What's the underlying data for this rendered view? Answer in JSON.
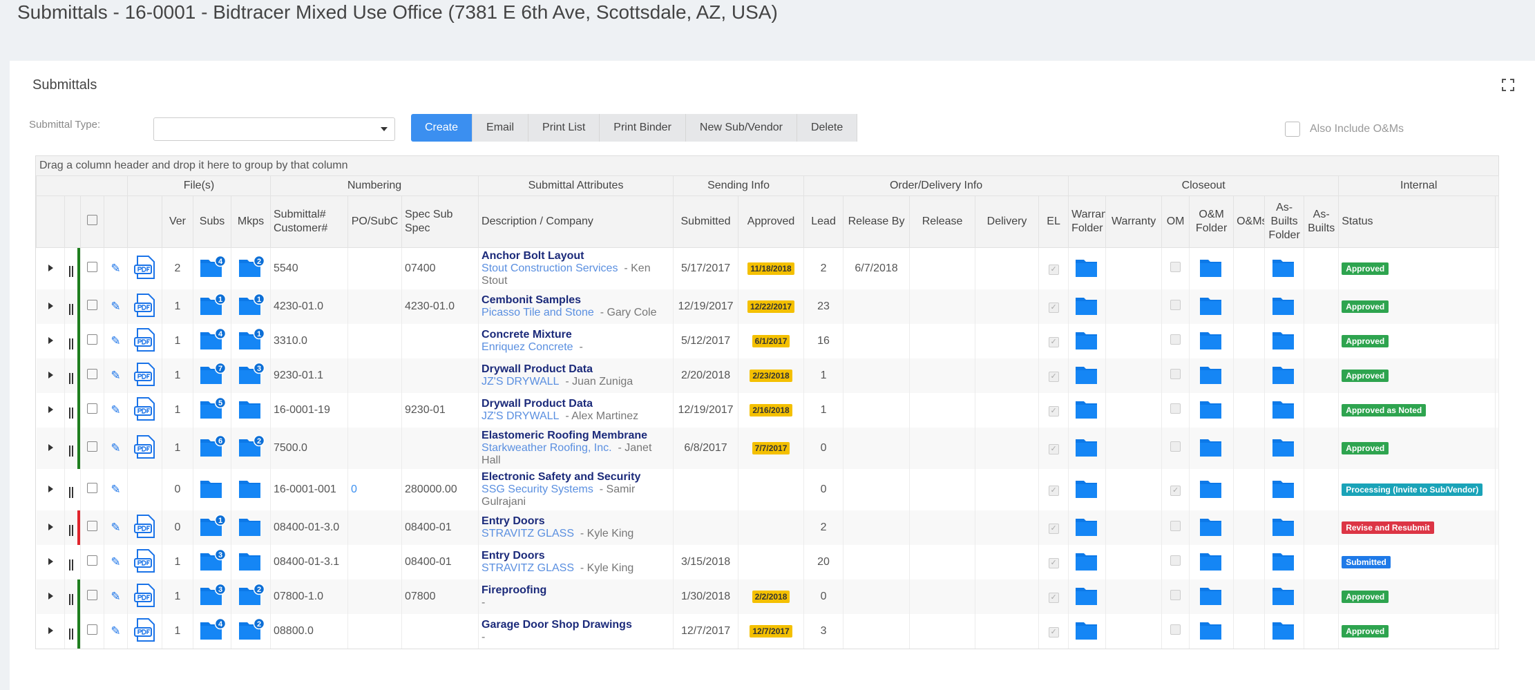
{
  "header": {
    "title": "Submittals - 16-0001 - Bidtracer Mixed Use Office (7381 E 6th Ave, Scottsdale, AZ, USA)"
  },
  "panel": {
    "title": "Submittals"
  },
  "toolbar": {
    "type_label": "Submittal Type:",
    "buttons": [
      "Create",
      "Email",
      "Print List",
      "Print Binder",
      "New Sub/Vendor",
      "Delete"
    ],
    "include_label": "Also Include O&Ms"
  },
  "table": {
    "group_hint": "Drag a column header and drop it here to group by that column",
    "groups": [
      "File(s)",
      "Numbering",
      "Submittal Attributes",
      "Sending Info",
      "Order/Delivery Info",
      "Closeout",
      "Internal"
    ],
    "columns": [
      "Ver",
      "Subs",
      "Mkps",
      "Submittal# Customer#",
      "PO/SubC",
      "Spec Sub Spec",
      "Description / Company",
      "Submitted",
      "Approved",
      "Lead",
      "Release By",
      "Release",
      "Delivery",
      "EL",
      "Warranty Folder",
      "Warranty",
      "OM",
      "O&M Folder",
      "O&Ms",
      "As-Builts Folder",
      "As-Builts",
      "Status"
    ],
    "rows": [
      {
        "bar": "green",
        "pdf": true,
        "ver": 2,
        "subs": 4,
        "mkps": 2,
        "number": "5540",
        "po": null,
        "spec": "07400",
        "description": "Anchor Bolt Layout",
        "company": "Stout Construction Services",
        "contact": "- Ken Stout",
        "submitted": "5/17/2017",
        "approved": "11/18/2018",
        "lead": 2,
        "release_by": "6/7/2018",
        "el": true,
        "om": false,
        "status": "Approved"
      },
      {
        "bar": "green",
        "pdf": true,
        "ver": 1,
        "subs": 1,
        "mkps": 1,
        "number": "4230-01.0",
        "po": null,
        "spec": "4230-01.0",
        "description": "Cembonit Samples",
        "company": "Picasso Tile and Stone",
        "contact": "- Gary Cole",
        "submitted": "12/19/2017",
        "approved": "12/22/2017",
        "lead": 23,
        "release_by": null,
        "el": true,
        "om": false,
        "status": "Approved"
      },
      {
        "bar": "green",
        "pdf": true,
        "ver": 1,
        "subs": 4,
        "mkps": 1,
        "number": "3310.0",
        "po": null,
        "spec": null,
        "description": "Concrete Mixture",
        "company": "Enriquez Concrete",
        "contact": "-",
        "submitted": "5/12/2017",
        "approved": "6/1/2017",
        "lead": 16,
        "release_by": null,
        "el": true,
        "om": false,
        "status": "Approved"
      },
      {
        "bar": "green",
        "pdf": true,
        "ver": 1,
        "subs": 7,
        "mkps": 3,
        "number": "9230-01.1",
        "po": null,
        "spec": null,
        "description": "Drywall Product Data",
        "company": "JZ'S DRYWALL",
        "contact": "- Juan Zuniga",
        "submitted": "2/20/2018",
        "approved": "2/23/2018",
        "lead": 1,
        "release_by": null,
        "el": true,
        "om": false,
        "status": "Approved"
      },
      {
        "bar": "green",
        "pdf": true,
        "ver": 1,
        "subs": 5,
        "mkps": null,
        "number": "16-0001-19",
        "po": null,
        "spec": "9230-01",
        "description": "Drywall Product Data",
        "company": "JZ'S DRYWALL",
        "contact": "- Alex Martinez",
        "submitted": "12/19/2017",
        "approved": "2/16/2018",
        "lead": 1,
        "release_by": null,
        "el": true,
        "om": false,
        "status": "Approved as Noted"
      },
      {
        "bar": "green",
        "pdf": true,
        "ver": 1,
        "subs": 6,
        "mkps": 2,
        "number": "7500.0",
        "po": null,
        "spec": null,
        "description": "Elastomeric Roofing Membrane",
        "company": "Starkweather Roofing, Inc.",
        "contact": "- Janet Hall",
        "submitted": "6/8/2017",
        "approved": "7/7/2017",
        "lead": 0,
        "release_by": null,
        "el": true,
        "om": false,
        "status": "Approved"
      },
      {
        "bar": null,
        "pdf": false,
        "ver": 0,
        "subs": null,
        "mkps": null,
        "number": "16-0001-001",
        "po": "0",
        "spec": "280000.00",
        "description": "Electronic Safety and Security",
        "company": "SSG Security Systems",
        "contact": "- Samir Gulrajani",
        "submitted": null,
        "approved": null,
        "lead": 0,
        "release_by": null,
        "el": true,
        "om": true,
        "status": "Processing (Invite to Sub/Vendor)"
      },
      {
        "bar": "red",
        "pdf": true,
        "ver": 0,
        "subs": 1,
        "mkps": null,
        "number": "08400-01-3.0",
        "po": null,
        "spec": "08400-01",
        "description": "Entry Doors",
        "company": "STRAVITZ GLASS",
        "contact": "- Kyle King",
        "submitted": null,
        "approved": null,
        "lead": 2,
        "release_by": null,
        "el": true,
        "om": false,
        "status": "Revise and Resubmit"
      },
      {
        "bar": null,
        "pdf": true,
        "ver": 1,
        "subs": 3,
        "mkps": null,
        "number": "08400-01-3.1",
        "po": null,
        "spec": "08400-01",
        "description": "Entry Doors",
        "company": "STRAVITZ GLASS",
        "contact": "- Kyle King",
        "submitted": "3/15/2018",
        "approved": null,
        "lead": 20,
        "release_by": null,
        "el": true,
        "om": false,
        "status": "Submitted"
      },
      {
        "bar": "green",
        "pdf": true,
        "ver": 1,
        "subs": 3,
        "mkps": 2,
        "number": "07800-1.0",
        "po": null,
        "spec": "07800",
        "description": "Fireproofing",
        "company": null,
        "contact": "-",
        "submitted": "1/30/2018",
        "approved": "2/2/2018",
        "lead": 0,
        "release_by": null,
        "el": true,
        "om": false,
        "status": "Approved"
      },
      {
        "bar": "green",
        "pdf": true,
        "ver": 1,
        "subs": 4,
        "mkps": 2,
        "number": "08800.0",
        "po": null,
        "spec": null,
        "description": "Garage Door Shop Drawings",
        "company": null,
        "contact": "-",
        "submitted": "12/7/2017",
        "approved": "12/7/2017",
        "lead": 3,
        "release_by": null,
        "el": true,
        "om": false,
        "status": "Approved"
      }
    ]
  }
}
